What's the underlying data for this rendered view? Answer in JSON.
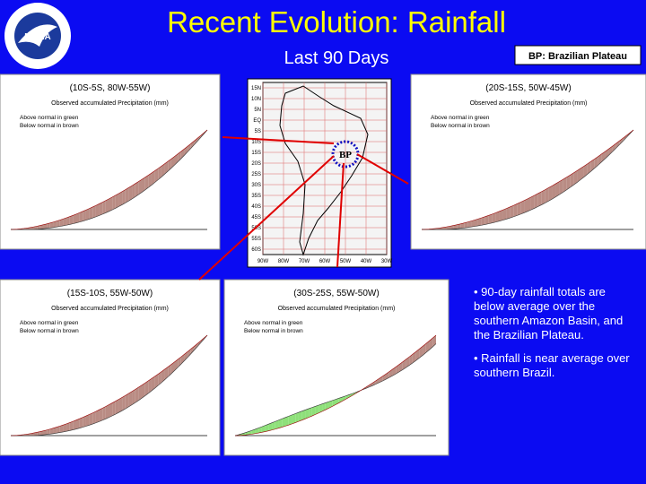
{
  "header": {
    "title": "Recent Evolution: Rainfall",
    "subtitle": "Last 90 Days",
    "key": "BP: Brazilian Plateau",
    "logo": "NOAA"
  },
  "map": {
    "marker": "BP",
    "lat_labels": [
      "15N",
      "10N",
      "5N",
      "EQ",
      "5S",
      "10S",
      "15S",
      "20S",
      "25S",
      "30S",
      "35S",
      "40S",
      "45S",
      "50S",
      "55S",
      "60S"
    ],
    "lon_labels": [
      "90W",
      "80W",
      "70W",
      "60W",
      "50W",
      "40W",
      "30W"
    ]
  },
  "panel_text": {
    "subtitle": "Observed accumulated Precipitation (mm)",
    "above": "Above normal in green",
    "below": "Below normal in brown"
  },
  "panels": [
    {
      "title": "(10S-5S, 80W-55W)"
    },
    {
      "title": "(20S-15S, 50W-45W)"
    },
    {
      "title": "(15S-10S, 55W-50W)"
    },
    {
      "title": "(30S-25S, 55W-50W)"
    }
  ],
  "bullets": [
    "• 90-day rainfall totals are below average over the southern Amazon Basin, and the Brazilian Plateau.",
    "• Rainfall is near average over  southern Brazil."
  ]
}
